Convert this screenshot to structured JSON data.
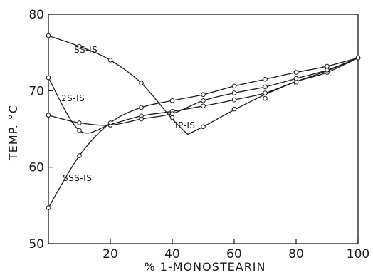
{
  "chart_data": {
    "type": "line",
    "title": "",
    "xlabel": "% 1-MONOSTEARIN",
    "ylabel": "TEMP. °C",
    "xlim": [
      0,
      100
    ],
    "ylim": [
      50,
      80
    ],
    "xticks": [
      20,
      40,
      60,
      80,
      100
    ],
    "xtick_labels": [
      "20",
      "40",
      "60",
      "80",
      "100"
    ],
    "yticks": [
      50,
      60,
      70,
      80
    ],
    "ytick_labels": [
      "50",
      "60",
      "70",
      "80"
    ],
    "grid": false,
    "series": [
      {
        "name": "SS-IS",
        "points": [
          [
            0,
            77.2
          ],
          [
            10,
            75.8
          ],
          [
            20,
            74.0
          ],
          [
            30,
            71.0
          ],
          [
            40,
            66.5
          ],
          [
            45,
            64.3
          ],
          [
            50,
            65.3
          ],
          [
            60,
            67.6
          ],
          [
            70,
            69.0
          ],
          [
            80,
            71.0
          ],
          [
            90,
            72.5
          ],
          [
            100,
            74.3
          ]
        ],
        "curve": [
          [
            0,
            77.2
          ],
          [
            10,
            75.8
          ],
          [
            20,
            74.0
          ],
          [
            30,
            71.0
          ],
          [
            40,
            66.3
          ],
          [
            45,
            64.3
          ],
          [
            50,
            65.3
          ],
          [
            60,
            67.5
          ],
          [
            70,
            69.5
          ],
          [
            80,
            71.2
          ],
          [
            90,
            72.6
          ],
          [
            100,
            74.3
          ]
        ]
      },
      {
        "name": "2S-IS",
        "points": [
          [
            0,
            71.7
          ],
          [
            10,
            64.8
          ],
          [
            20,
            65.6
          ],
          [
            30,
            66.7
          ],
          [
            40,
            67.3
          ],
          [
            50,
            68.0
          ],
          [
            60,
            68.8
          ],
          [
            70,
            69.7
          ],
          [
            80,
            71.2
          ],
          [
            90,
            72.4
          ],
          [
            100,
            74.3
          ]
        ]
      },
      {
        "name": "IP-IS",
        "points": [
          [
            0,
            66.8
          ],
          [
            10,
            65.8
          ],
          [
            20,
            65.5
          ],
          [
            30,
            66.3
          ],
          [
            40,
            67.0
          ],
          [
            50,
            68.7
          ],
          [
            60,
            69.7
          ],
          [
            70,
            70.5
          ],
          [
            80,
            71.6
          ],
          [
            90,
            72.7
          ],
          [
            100,
            74.3
          ]
        ]
      },
      {
        "name": "SSS-IS",
        "points": [
          [
            0,
            54.7
          ],
          [
            10,
            61.5
          ],
          [
            20,
            65.8
          ],
          [
            30,
            67.8
          ],
          [
            40,
            68.7
          ],
          [
            50,
            69.5
          ],
          [
            60,
            70.6
          ],
          [
            70,
            71.5
          ],
          [
            80,
            72.4
          ],
          [
            90,
            73.2
          ],
          [
            100,
            74.3
          ]
        ]
      }
    ]
  }
}
